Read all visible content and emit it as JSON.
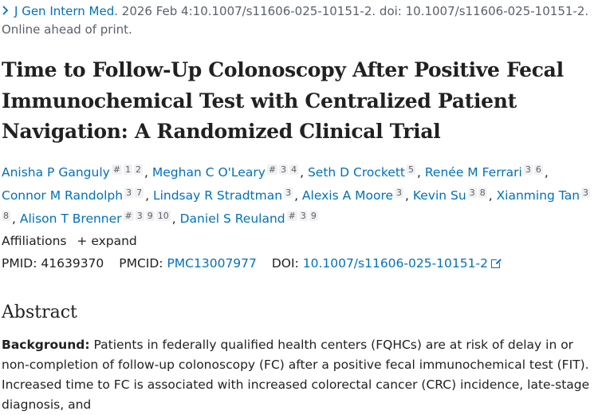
{
  "citation": {
    "journal": "J Gen Intern Med",
    "rest": "2026 Feb 4:10.1007/s11606-025-10151-2. doi: 10.1007/s11606-025-10151-2.",
    "line2": "Online ahead of print."
  },
  "title": "Time to Follow-Up Colonoscopy After Positive Fecal Immunochemical Test with Centralized Patient Navigation: A Randomized Clinical Trial",
  "authors": [
    {
      "name": "Anisha P Ganguly",
      "sups": [
        "#",
        "1",
        "2"
      ]
    },
    {
      "name": "Meghan C O'Leary",
      "sups": [
        "#",
        "3",
        "4"
      ]
    },
    {
      "name": "Seth D Crockett",
      "sups": [
        "5"
      ]
    },
    {
      "name": "Renée M Ferrari",
      "sups": [
        "3",
        "6"
      ]
    },
    {
      "name": "Connor M Randolph",
      "sups": [
        "3",
        "7"
      ]
    },
    {
      "name": "Lindsay R Stradtman",
      "sups": [
        "3"
      ]
    },
    {
      "name": "Alexis A Moore",
      "sups": [
        "3"
      ]
    },
    {
      "name": "Kevin Su",
      "sups": [
        "3",
        "8"
      ]
    },
    {
      "name": "Xianming Tan",
      "sups": [
        "3",
        "8"
      ]
    },
    {
      "name": "Alison T Brenner",
      "sups": [
        "#",
        "3",
        "9",
        "10"
      ]
    },
    {
      "name": "Daniel S Reuland",
      "sups": [
        "#",
        "3",
        "9"
      ]
    }
  ],
  "affiliations": {
    "label": "Affiliations",
    "expand": "+ expand"
  },
  "ids": {
    "pmid_label": "PMID:",
    "pmid": "41639370",
    "pmcid_label": "PMCID:",
    "pmcid": "PMC13007977",
    "doi_label": "DOI:",
    "doi": "10.1007/s11606-025-10151-2"
  },
  "abstract": {
    "heading": "Abstract",
    "background_label": "Background:",
    "background_text": "Patients in federally qualified health centers (FQHCs) are at risk of delay in or non-completion of follow-up colonoscopy (FC) after a positive fecal immunochemical test (FIT). Increased time to FC is associated with increased colorectal cancer (CRC) incidence, late-stage diagnosis, and"
  }
}
